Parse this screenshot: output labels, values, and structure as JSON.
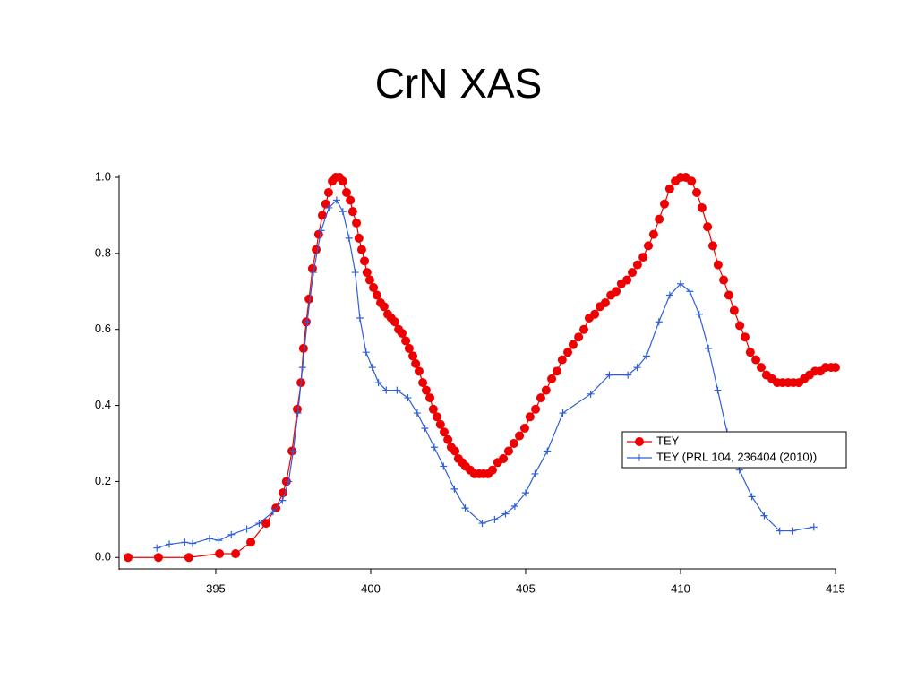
{
  "chart_data": {
    "type": "line",
    "title": "CrN XAS",
    "xlim": [
      391.88,
      415
    ],
    "ylim": [
      -0.03,
      1.0
    ],
    "xticks": [
      395,
      400,
      405,
      410,
      415
    ],
    "yticks": [
      {
        "value": 0,
        "label": "0.0"
      },
      0.2,
      0.4,
      0.6,
      0.8,
      {
        "value": 1,
        "label": "1.0"
      }
    ],
    "legend_loc": "center right",
    "series": [
      {
        "name": "TEY",
        "color": "#ee0000",
        "marker": "circle",
        "x": [
          392.17,
          393.15,
          394.13,
          395.12,
          395.64,
          396.13,
          396.62,
          396.94,
          397.17,
          397.28,
          397.46,
          397.63,
          397.75,
          397.83,
          397.92,
          398.01,
          398.12,
          398.24,
          398.32,
          398.44,
          398.55,
          398.64,
          398.76,
          398.87,
          398.99,
          399.1,
          399.22,
          399.34,
          399.42,
          399.54,
          399.62,
          399.71,
          399.8,
          399.88,
          399.97,
          400.09,
          400.2,
          400.32,
          400.43,
          400.55,
          400.66,
          400.78,
          400.9,
          401.01,
          401.13,
          401.24,
          401.36,
          401.45,
          401.56,
          401.68,
          401.79,
          401.91,
          402.02,
          402.14,
          402.25,
          402.37,
          402.49,
          402.6,
          402.72,
          402.83,
          402.95,
          403.06,
          403.21,
          403.35,
          403.5,
          403.64,
          403.79,
          403.93,
          404.1,
          404.28,
          404.45,
          404.62,
          404.8,
          404.97,
          405.14,
          405.32,
          405.49,
          405.66,
          405.84,
          406.01,
          406.18,
          406.36,
          406.53,
          406.71,
          406.88,
          407.05,
          407.23,
          407.4,
          407.57,
          407.75,
          407.92,
          408.09,
          408.27,
          408.44,
          408.61,
          408.79,
          408.96,
          409.13,
          409.31,
          409.48,
          409.65,
          409.83,
          410.0,
          410.17,
          410.35,
          410.52,
          410.69,
          410.87,
          411.04,
          411.21,
          411.39,
          411.56,
          411.73,
          411.91,
          412.08,
          412.25,
          412.43,
          412.6,
          412.77,
          412.95,
          413.12,
          413.29,
          413.47,
          413.64,
          413.82,
          413.99,
          414.16,
          414.34,
          414.51,
          414.68,
          414.86,
          415.0
        ],
        "values": [
          0.0,
          0.0,
          0.0,
          0.01,
          0.01,
          0.04,
          0.09,
          0.13,
          0.17,
          0.2,
          0.28,
          0.39,
          0.46,
          0.55,
          0.62,
          0.68,
          0.76,
          0.81,
          0.85,
          0.9,
          0.93,
          0.96,
          0.99,
          1.0,
          1.0,
          0.99,
          0.96,
          0.94,
          0.91,
          0.88,
          0.84,
          0.81,
          0.78,
          0.75,
          0.73,
          0.71,
          0.69,
          0.67,
          0.66,
          0.64,
          0.63,
          0.62,
          0.6,
          0.59,
          0.57,
          0.55,
          0.53,
          0.51,
          0.49,
          0.46,
          0.44,
          0.42,
          0.39,
          0.37,
          0.35,
          0.33,
          0.31,
          0.29,
          0.28,
          0.26,
          0.25,
          0.24,
          0.23,
          0.22,
          0.22,
          0.22,
          0.22,
          0.23,
          0.25,
          0.26,
          0.28,
          0.3,
          0.32,
          0.34,
          0.37,
          0.39,
          0.42,
          0.44,
          0.47,
          0.49,
          0.52,
          0.54,
          0.56,
          0.58,
          0.6,
          0.63,
          0.64,
          0.66,
          0.67,
          0.69,
          0.7,
          0.72,
          0.73,
          0.75,
          0.77,
          0.79,
          0.82,
          0.85,
          0.89,
          0.93,
          0.97,
          0.99,
          1.0,
          1.0,
          0.99,
          0.96,
          0.92,
          0.87,
          0.82,
          0.77,
          0.73,
          0.69,
          0.65,
          0.61,
          0.58,
          0.54,
          0.52,
          0.5,
          0.48,
          0.47,
          0.46,
          0.46,
          0.46,
          0.46,
          0.46,
          0.47,
          0.48,
          0.49,
          0.49,
          0.5,
          0.5,
          0.5
        ]
      },
      {
        "name": "TEY (PRL 104, 236404 (2010))",
        "color": "#2f5fd8",
        "marker": "plus",
        "x": [
          393.1,
          393.5,
          394.0,
          394.25,
          394.8,
          395.1,
          395.5,
          396.0,
          396.4,
          396.85,
          397.15,
          397.35,
          397.5,
          397.65,
          397.8,
          397.95,
          398.15,
          398.4,
          398.65,
          398.9,
          399.1,
          399.3,
          399.5,
          399.65,
          399.85,
          400.05,
          400.25,
          400.5,
          400.85,
          401.2,
          401.5,
          401.75,
          402.05,
          402.35,
          402.7,
          403.05,
          403.6,
          404.0,
          404.35,
          404.65,
          405.0,
          405.3,
          405.7,
          406.2,
          407.1,
          407.7,
          408.3,
          408.6,
          408.9,
          409.3,
          409.65,
          410.0,
          410.3,
          410.6,
          410.9,
          411.2,
          411.5,
          411.9,
          412.3,
          412.7,
          413.2,
          413.6,
          414.3
        ],
        "values": [
          0.025,
          0.035,
          0.04,
          0.037,
          0.05,
          0.045,
          0.06,
          0.075,
          0.09,
          0.12,
          0.15,
          0.2,
          0.28,
          0.38,
          0.5,
          0.62,
          0.75,
          0.86,
          0.92,
          0.94,
          0.91,
          0.84,
          0.75,
          0.63,
          0.54,
          0.5,
          0.46,
          0.44,
          0.44,
          0.42,
          0.38,
          0.34,
          0.29,
          0.24,
          0.18,
          0.13,
          0.09,
          0.1,
          0.115,
          0.135,
          0.17,
          0.22,
          0.28,
          0.38,
          0.43,
          0.48,
          0.48,
          0.5,
          0.53,
          0.62,
          0.69,
          0.72,
          0.7,
          0.64,
          0.55,
          0.44,
          0.33,
          0.23,
          0.16,
          0.11,
          0.07,
          0.07,
          0.08
        ]
      }
    ]
  }
}
